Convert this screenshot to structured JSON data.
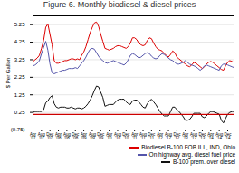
{
  "chart_data": {
    "type": "line",
    "title": "Figure 6. Monthly biodiesel & diesel prices",
    "ylabel": "$ Per Gallon",
    "categories": [
      "Apr\n'07",
      null,
      null,
      null,
      "Aug\n'07",
      null,
      null,
      null,
      "Dec\n'07",
      null,
      null,
      null,
      "Apr\n'08",
      null,
      null,
      null,
      "Aug\n'08",
      null,
      null,
      null,
      "Dec\n'08",
      null,
      null,
      null,
      "Apr\n'09",
      null,
      null,
      null,
      "Aug\n'09",
      null,
      null,
      null,
      "Dec\n'09",
      null,
      null,
      null,
      "Apr\n'10",
      null,
      null,
      null,
      "Aug\n'10",
      null,
      null,
      null,
      "Dec\n'10",
      null,
      null,
      null,
      "Apr\n'11",
      null,
      null,
      null,
      "Aug\n'11",
      null,
      null,
      null,
      "Dec\n'11",
      null,
      null,
      null,
      "Apr\n'12",
      null,
      null,
      null,
      "Aug\n'12",
      null,
      null,
      null,
      "Dec\n'12",
      null,
      null,
      null,
      "Apr\n'13",
      null,
      null,
      null,
      "Aug\n'13",
      null,
      null,
      null,
      "Dec\n'13",
      null,
      null,
      null,
      "Apr\n'14",
      null,
      null,
      null,
      "Aug\n'14",
      null,
      null,
      null,
      "Dec\n'14",
      null,
      null,
      null
    ],
    "series": [
      {
        "name": "Biodiesel B-100 FOB ILL, IND, Ohio",
        "color": "#dd0000",
        "values": [
          3.15,
          3.25,
          3.35,
          3.5,
          3.9,
          4.35,
          5.1,
          5.3,
          4.7,
          4.1,
          3.2,
          3.05,
          3.05,
          3.1,
          3.15,
          3.2,
          3.2,
          3.25,
          3.3,
          3.3,
          3.25,
          3.3,
          3.25,
          3.5,
          3.7,
          4.0,
          4.4,
          4.8,
          5.1,
          5.35,
          5.4,
          5.15,
          4.7,
          4.3,
          3.9,
          3.85,
          3.8,
          3.85,
          3.9,
          4.0,
          4.05,
          4.05,
          4.0,
          3.95,
          3.9,
          4.0,
          4.2,
          4.5,
          4.5,
          4.4,
          4.2,
          4.1,
          4.05,
          4.1,
          4.35,
          4.5,
          4.45,
          4.2,
          4.0,
          3.85,
          3.8,
          3.75,
          3.6,
          3.5,
          3.4,
          3.55,
          3.75,
          3.65,
          3.4,
          3.3,
          3.2,
          3.1,
          3.0,
          2.9,
          2.85,
          2.95,
          3.1,
          3.05,
          2.95,
          2.85,
          2.75,
          2.85,
          3.0,
          3.1,
          3.15,
          3.1,
          3.0,
          2.9,
          2.8,
          2.7,
          2.65,
          2.9,
          3.1,
          3.2,
          3.15,
          3.1
        ]
      },
      {
        "name": "On highway avg. diesel fuel price",
        "color": "#5555aa",
        "values": [
          2.9,
          2.95,
          3.05,
          3.2,
          3.6,
          3.95,
          4.3,
          3.8,
          3.0,
          2.5,
          2.45,
          2.5,
          2.55,
          2.6,
          2.65,
          2.65,
          2.7,
          2.75,
          2.75,
          2.75,
          2.8,
          2.75,
          2.9,
          3.05,
          3.2,
          3.4,
          3.65,
          3.85,
          3.9,
          3.85,
          3.65,
          3.45,
          3.3,
          3.2,
          3.1,
          3.05,
          3.1,
          3.15,
          3.2,
          3.15,
          3.1,
          3.05,
          3.0,
          2.95,
          3.05,
          3.25,
          3.5,
          3.6,
          3.55,
          3.45,
          3.35,
          3.4,
          3.5,
          3.6,
          3.65,
          3.6,
          3.45,
          3.35,
          3.3,
          3.35,
          3.5,
          3.6,
          3.55,
          3.45,
          3.35,
          3.25,
          3.2,
          3.1,
          3.0,
          3.0,
          3.05,
          3.1,
          3.2,
          3.1,
          3.0,
          2.95,
          2.9,
          2.85,
          2.75,
          2.65,
          2.75,
          2.9,
          2.95,
          2.9,
          2.85,
          2.8,
          2.75,
          2.7,
          2.65,
          2.9,
          3.0,
          3.0,
          2.95,
          2.9,
          2.85,
          2.8
        ]
      },
      {
        "name": "B-100 prem. over diesel",
        "color": "#111111",
        "values": [
          0.25,
          0.3,
          0.3,
          0.3,
          0.3,
          0.4,
          0.8,
          0.9,
          1.1,
          1.2,
          0.75,
          0.55,
          0.5,
          0.55,
          0.55,
          0.55,
          0.5,
          0.5,
          0.55,
          0.5,
          0.45,
          0.5,
          0.5,
          0.45,
          0.5,
          0.6,
          0.75,
          0.95,
          1.2,
          1.5,
          1.75,
          1.7,
          1.4,
          1.1,
          0.6,
          0.65,
          0.7,
          0.7,
          0.7,
          0.85,
          0.95,
          1.0,
          1.0,
          1.0,
          0.85,
          0.75,
          0.7,
          0.9,
          0.95,
          0.95,
          0.85,
          0.7,
          0.55,
          0.5,
          0.75,
          0.9,
          1.0,
          0.85,
          0.7,
          0.5,
          0.3,
          0.15,
          0.05,
          0.05,
          0.05,
          0.3,
          0.55,
          0.55,
          0.4,
          0.3,
          0.15,
          0.0,
          -0.2,
          -0.2,
          -0.15,
          0.0,
          0.2,
          0.2,
          0.2,
          0.2,
          0.0,
          -0.05,
          0.05,
          0.2,
          0.3,
          0.3,
          0.25,
          0.2,
          0.15,
          -0.2,
          -0.35,
          -0.1,
          0.15,
          0.25,
          0.3,
          0.3
        ]
      }
    ],
    "ylim": [
      -0.75,
      5.75
    ],
    "yticks": [
      {
        "value": -0.75,
        "label": "(0.75)"
      },
      0.25,
      1.25,
      2.25,
      3.25,
      4.25,
      5.25
    ],
    "grid": true,
    "legend": "lower right",
    "hline": {
      "y": 0.13,
      "color": "#cc0000"
    }
  }
}
